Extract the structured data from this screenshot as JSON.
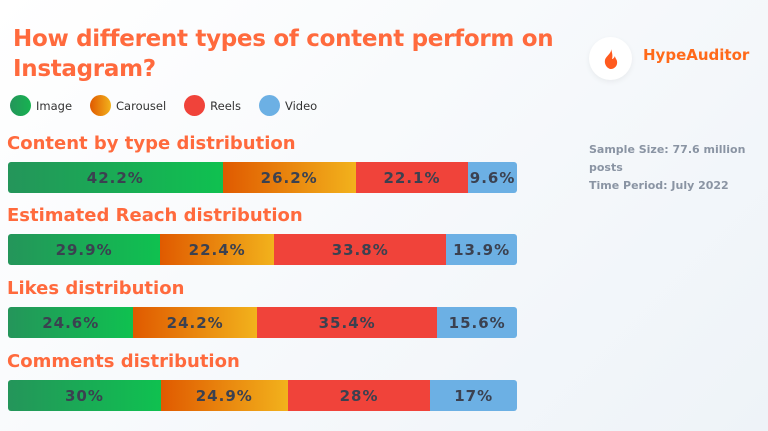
{
  "chart_data": {
    "type": "bar",
    "stacked": true,
    "orientation": "horizontal",
    "title": "How different types of content perform on Instagram?",
    "legend": [
      "Image",
      "Carousel",
      "Reels",
      "Video"
    ],
    "legend_position": "top-left",
    "colors": {
      "Image": "#17b351",
      "Carousel": "#f08a10",
      "Reels": "#f0433a",
      "Video": "#6cb0e4"
    },
    "charts": [
      {
        "title": "Content by type distribution",
        "values": [
          42.2,
          26.2,
          22.1,
          9.6
        ],
        "labels": [
          "42.2%",
          "26.2%",
          "22.1%",
          "9.6%"
        ]
      },
      {
        "title": "Estimated Reach distribution",
        "values": [
          29.9,
          22.4,
          33.8,
          13.9
        ],
        "labels": [
          "29.9%",
          "22.4%",
          "33.8%",
          "13.9%"
        ]
      },
      {
        "title": "Likes distribution",
        "values": [
          24.6,
          24.2,
          35.4,
          15.6
        ],
        "labels": [
          "24.6%",
          "24.2%",
          "35.4%",
          "15.6%"
        ]
      },
      {
        "title": "Comments distribution",
        "values": [
          30,
          24.9,
          28,
          17
        ],
        "labels": [
          "30%",
          "24.9%",
          "28%",
          "17%"
        ]
      }
    ]
  },
  "brand": {
    "name": "HypeAuditor",
    "icon": "flame-icon"
  },
  "meta": {
    "sample": "Sample Size: 77.6 million posts",
    "period": "Time Period: July 2022"
  }
}
